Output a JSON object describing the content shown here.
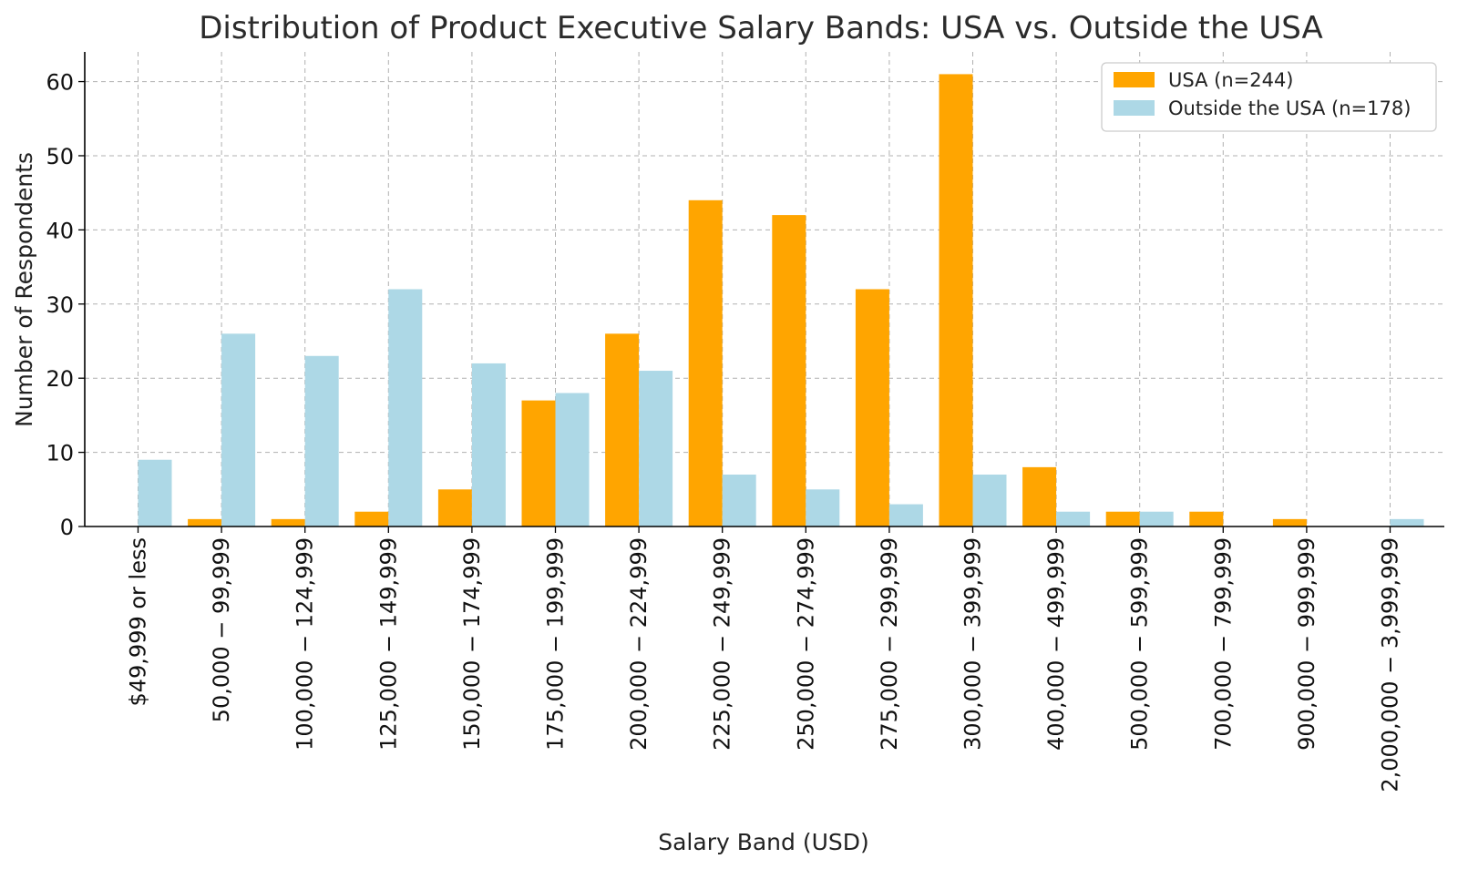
{
  "chart_data": {
    "type": "bar",
    "title": "Distribution of Product Executive Salary Bands: USA vs. Outside the USA",
    "xlabel": "Salary Band (USD)",
    "ylabel": "Number of Respondents",
    "ylim": [
      0,
      64
    ],
    "yticks": [
      0,
      10,
      20,
      30,
      40,
      50,
      60
    ],
    "grid": true,
    "legend_position": "top-right",
    "categories": [
      "$49,999 or less",
      "50,000 − 99,999",
      "100,000 − 124,999",
      "125,000 − 149,999",
      "150,000 − 174,999",
      "175,000 − 199,999",
      "200,000 − 224,999",
      "225,000 − 249,999",
      "250,000 − 274,999",
      "275,000 − 299,999",
      "300,000 − 399,999",
      "400,000 − 499,999",
      "500,000 − 599,999",
      "700,000 − 799,999",
      "900,000 − 999,999",
      "2,000,000 − 3,999,999"
    ],
    "series": [
      {
        "name": "USA (n=244)",
        "color": "#FFA500",
        "values": [
          0,
          1,
          1,
          2,
          5,
          17,
          26,
          44,
          42,
          32,
          61,
          8,
          2,
          2,
          1,
          0
        ]
      },
      {
        "name": "Outside the USA (n=178)",
        "color": "#ADD8E6",
        "values": [
          9,
          26,
          23,
          32,
          22,
          18,
          21,
          7,
          5,
          3,
          7,
          2,
          2,
          0,
          0,
          1
        ]
      }
    ]
  }
}
